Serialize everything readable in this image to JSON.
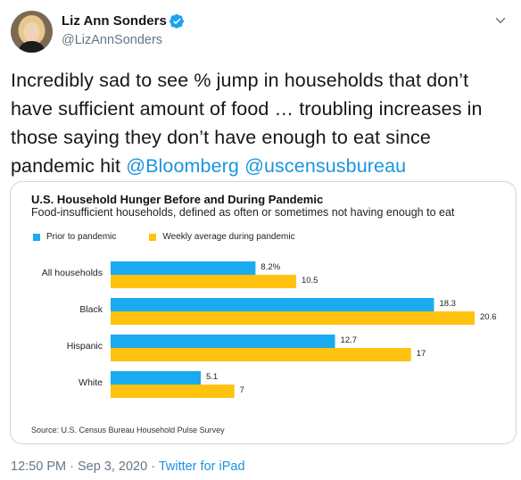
{
  "user": {
    "display_name": "Liz Ann Sonders",
    "handle": "@LizAnnSonders",
    "verified": true
  },
  "tweet": {
    "text": "Incredibly sad to see % jump in households that don’t have sufficient amount of food … troubling increases in those saying they don’t have enough to eat since pandemic hit ",
    "mention1": "@Bloomberg",
    "mention2": "@uscensusbureau"
  },
  "footer": {
    "time": "12:50 PM",
    "sep1": " · ",
    "date": "Sep 3, 2020",
    "sep2": " · ",
    "source": "Twitter for iPad"
  },
  "colors": {
    "prior": "#1aaaf0",
    "weekly": "#ffc20e",
    "link": "#1b95e0"
  },
  "chart_data": {
    "type": "bar",
    "orientation": "horizontal",
    "title": "U.S. Household Hunger Before and During Pandemic",
    "subtitle": "Food-insufficient households, defined as often or sometimes not having enough to eat",
    "categories": [
      "All households",
      "Black",
      "Hispanic",
      "White"
    ],
    "series": [
      {
        "name": "Prior to pandemic",
        "values": [
          8.2,
          18.3,
          12.7,
          5.1
        ],
        "labels": [
          "8.2%",
          "18.3",
          "12.7",
          "5.1"
        ]
      },
      {
        "name": "Weekly average during pandemic",
        "values": [
          10.5,
          20.6,
          17,
          7
        ],
        "labels": [
          "10.5",
          "20.6",
          "17",
          "7"
        ]
      }
    ],
    "xlim": [
      0,
      20.6
    ],
    "legend_position": "top-left",
    "source": "Source: U.S. Census Bureau Household Pulse Survey"
  }
}
